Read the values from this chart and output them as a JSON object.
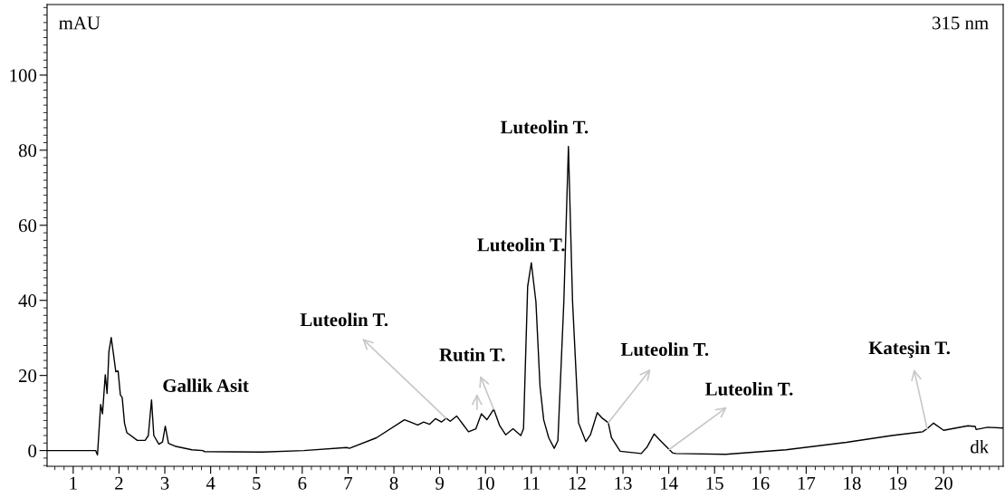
{
  "chart_data": {
    "type": "line",
    "xlabel": "dk",
    "ylabel": "mAU",
    "xlim": [
      0.43,
      21.3
    ],
    "ylim": [
      -4.2,
      118.8
    ],
    "xticks": [
      1,
      2,
      3,
      4,
      5,
      6,
      7,
      8,
      9,
      10,
      11,
      12,
      13,
      14,
      15,
      16,
      17,
      18,
      19,
      20
    ],
    "yticks": [
      0,
      20,
      40,
      60,
      80,
      100
    ],
    "grid": false,
    "legend": false,
    "marker": "none",
    "line_style": "solid",
    "series": [
      {
        "color": "#000000",
        "x": [
          0.43,
          1.49,
          1.53,
          1.6,
          1.64,
          1.7,
          1.74,
          1.78,
          1.83,
          1.88,
          1.93,
          1.98,
          2.03,
          2.07,
          2.12,
          2.17,
          2.4,
          2.57,
          2.64,
          2.71,
          2.76,
          2.87,
          2.95,
          3.01,
          3.08,
          3.24,
          3.59,
          3.83,
          3.87,
          5.13,
          6.03,
          6.97,
          7.03,
          7.62,
          8.23,
          8.36,
          8.52,
          8.65,
          8.78,
          8.91,
          9.04,
          9.14,
          9.23,
          9.37,
          9.63,
          9.79,
          9.91,
          10.03,
          10.18,
          10.31,
          10.44,
          10.6,
          10.77,
          10.83,
          10.92,
          11.0,
          11.1,
          11.19,
          11.27,
          11.38,
          11.5,
          11.58,
          11.71,
          11.81,
          11.9,
          12.03,
          12.19,
          12.29,
          12.44,
          12.55,
          12.68,
          12.75,
          12.94,
          13.4,
          13.53,
          13.68,
          13.79,
          14.08,
          14.15,
          15.24,
          16.56,
          17.88,
          18.87,
          19.54,
          19.64,
          19.78,
          20.0,
          20.53,
          20.69,
          20.71,
          20.96,
          21.3
        ],
        "values": [
          0,
          0,
          -1.2,
          12.3,
          9.8,
          20.2,
          15.2,
          26.4,
          30.1,
          25.6,
          21,
          21.2,
          14.8,
          14.1,
          7.3,
          4.8,
          2.7,
          2.7,
          4,
          13.5,
          4,
          1.7,
          2.3,
          6.5,
          1.9,
          1.1,
          0.2,
          0,
          -0.3,
          -0.4,
          0,
          0.8,
          0.6,
          3.4,
          8.2,
          7.6,
          6.8,
          7.6,
          7,
          8.5,
          7.6,
          8.6,
          7.8,
          9.2,
          5,
          5.8,
          9.8,
          8.2,
          11,
          6.6,
          4.2,
          5.8,
          4,
          5.8,
          43.7,
          50,
          39.7,
          17.1,
          8.2,
          3.4,
          0.6,
          2.6,
          39.7,
          81,
          39.7,
          7.4,
          2.4,
          4.2,
          10.1,
          8.6,
          7.4,
          3.4,
          -0.2,
          -0.8,
          1,
          4.4,
          3,
          -0.6,
          -0.8,
          -1,
          0.2,
          2.2,
          4,
          5,
          5.8,
          7.3,
          5.4,
          6.6,
          6.4,
          5.6,
          6.2,
          6
        ]
      }
    ],
    "annotations": [
      "315 nm",
      {
        "text": "Gallik Asit",
        "x": 2.71,
        "y": 13.5
      },
      {
        "text": "Luteolin T.",
        "x": 9.14,
        "y": 8.6
      },
      {
        "text": "Rutin T.",
        "x": 10.18,
        "y": 11
      },
      {
        "text": "Luteolin T.",
        "x": 11.81,
        "y": 81
      },
      {
        "text": "Luteolin T.",
        "x": 11.0,
        "y": 50
      },
      {
        "text": "Luteolin T.",
        "x": 12.68,
        "y": 7.4
      },
      {
        "text": "Luteolin T.",
        "x": 14.0,
        "y": 0.2
      },
      {
        "text": "Kateşin T.",
        "x": 19.64,
        "y": 5.8
      }
    ]
  }
}
